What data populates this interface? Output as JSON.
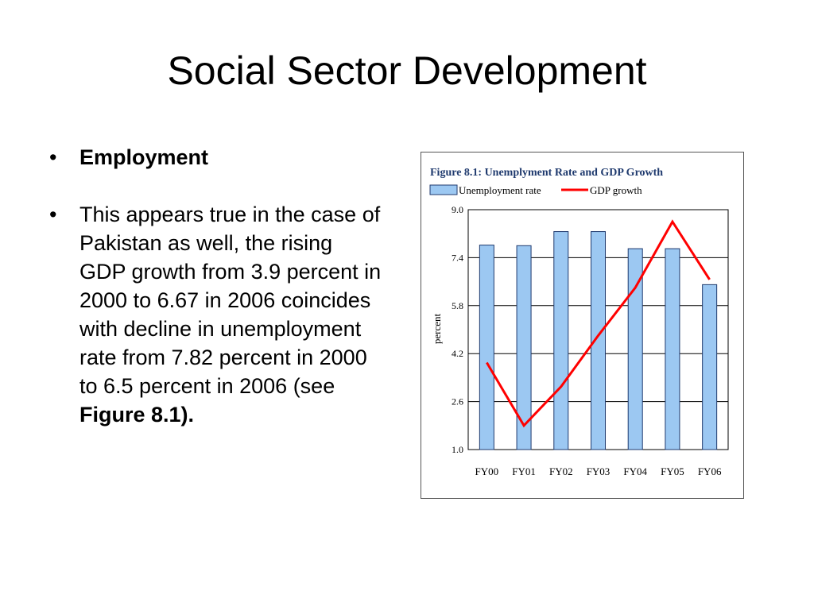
{
  "slide": {
    "title": "Social Sector Development",
    "bullet1": "Employment",
    "bullet2_text": "This appears true in the case of Pakistan as well, the rising GDP growth from 3.9 percent in 2000 to 6.67 in 2006 coincides with decline in unemployment rate from 7.82 percent in 2000 to 6.5 percent in 2006 (see ",
    "bullet2_ref": "Figure 8.1)."
  },
  "chart_data": {
    "type": "bar",
    "title": "Figure 8.1: Unemplyment Rate and GDP Growth",
    "xlabel": "",
    "ylabel": "percent",
    "ylim": [
      1.0,
      9.0
    ],
    "yticks": [
      "1.0",
      "2.6",
      "4.2",
      "5.8",
      "7.4",
      "9.0"
    ],
    "categories": [
      "FY00",
      "FY01",
      "FY02",
      "FY03",
      "FY04",
      "FY05",
      "FY06"
    ],
    "series": [
      {
        "name": "Unemployment rate",
        "kind": "bar",
        "color": "#9cc8f2",
        "values": [
          7.82,
          7.8,
          8.27,
          8.27,
          7.7,
          7.7,
          6.5
        ]
      },
      {
        "name": "GDP growth",
        "kind": "line",
        "color": "#ff0000",
        "values": [
          3.9,
          1.8,
          3.1,
          4.8,
          6.4,
          8.6,
          6.67
        ]
      }
    ],
    "grid": true,
    "legend": "top"
  }
}
